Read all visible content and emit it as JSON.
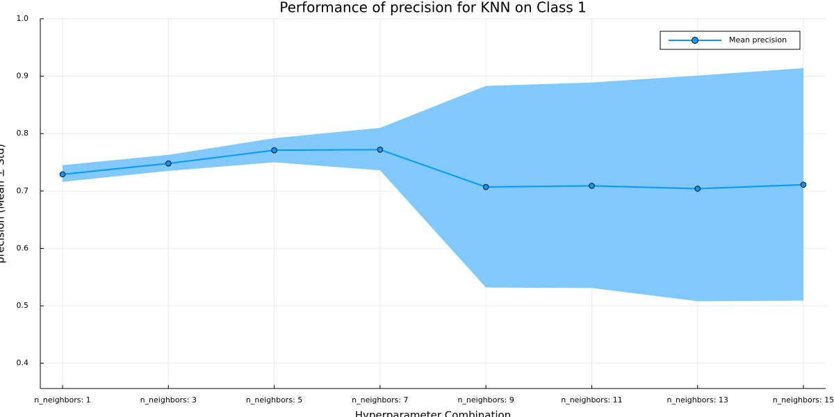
{
  "chart_data": {
    "type": "line",
    "title": "Performance of precision for KNN on Class 1",
    "x_label": "Hyperparameter Combination",
    "y_label": "precision (Mean ± Std)",
    "categories": [
      "n_neighbors: 1",
      "n_neighbors: 3",
      "n_neighbors: 5",
      "n_neighbors: 7",
      "n_neighbors: 9",
      "n_neighbors: 11",
      "n_neighbors: 13",
      "n_neighbors: 15"
    ],
    "series": [
      {
        "name": "Mean precision",
        "color": "#009af9",
        "values": [
          0.729,
          0.748,
          0.771,
          0.772,
          0.707,
          0.709,
          0.704,
          0.711
        ]
      }
    ],
    "band": {
      "color": "#80c9fa",
      "upper": [
        0.745,
        0.763,
        0.792,
        0.81,
        0.883,
        0.889,
        0.901,
        0.914
      ],
      "lower": [
        0.716,
        0.735,
        0.75,
        0.736,
        0.532,
        0.531,
        0.508,
        0.509
      ]
    },
    "ylim": [
      0.356,
      1.0
    ],
    "yticks": [
      0.4,
      0.5,
      0.6,
      0.7,
      0.8,
      0.9,
      {
        "value": 1,
        "label": "1.0"
      }
    ],
    "grid": true,
    "legend": "top-right"
  }
}
